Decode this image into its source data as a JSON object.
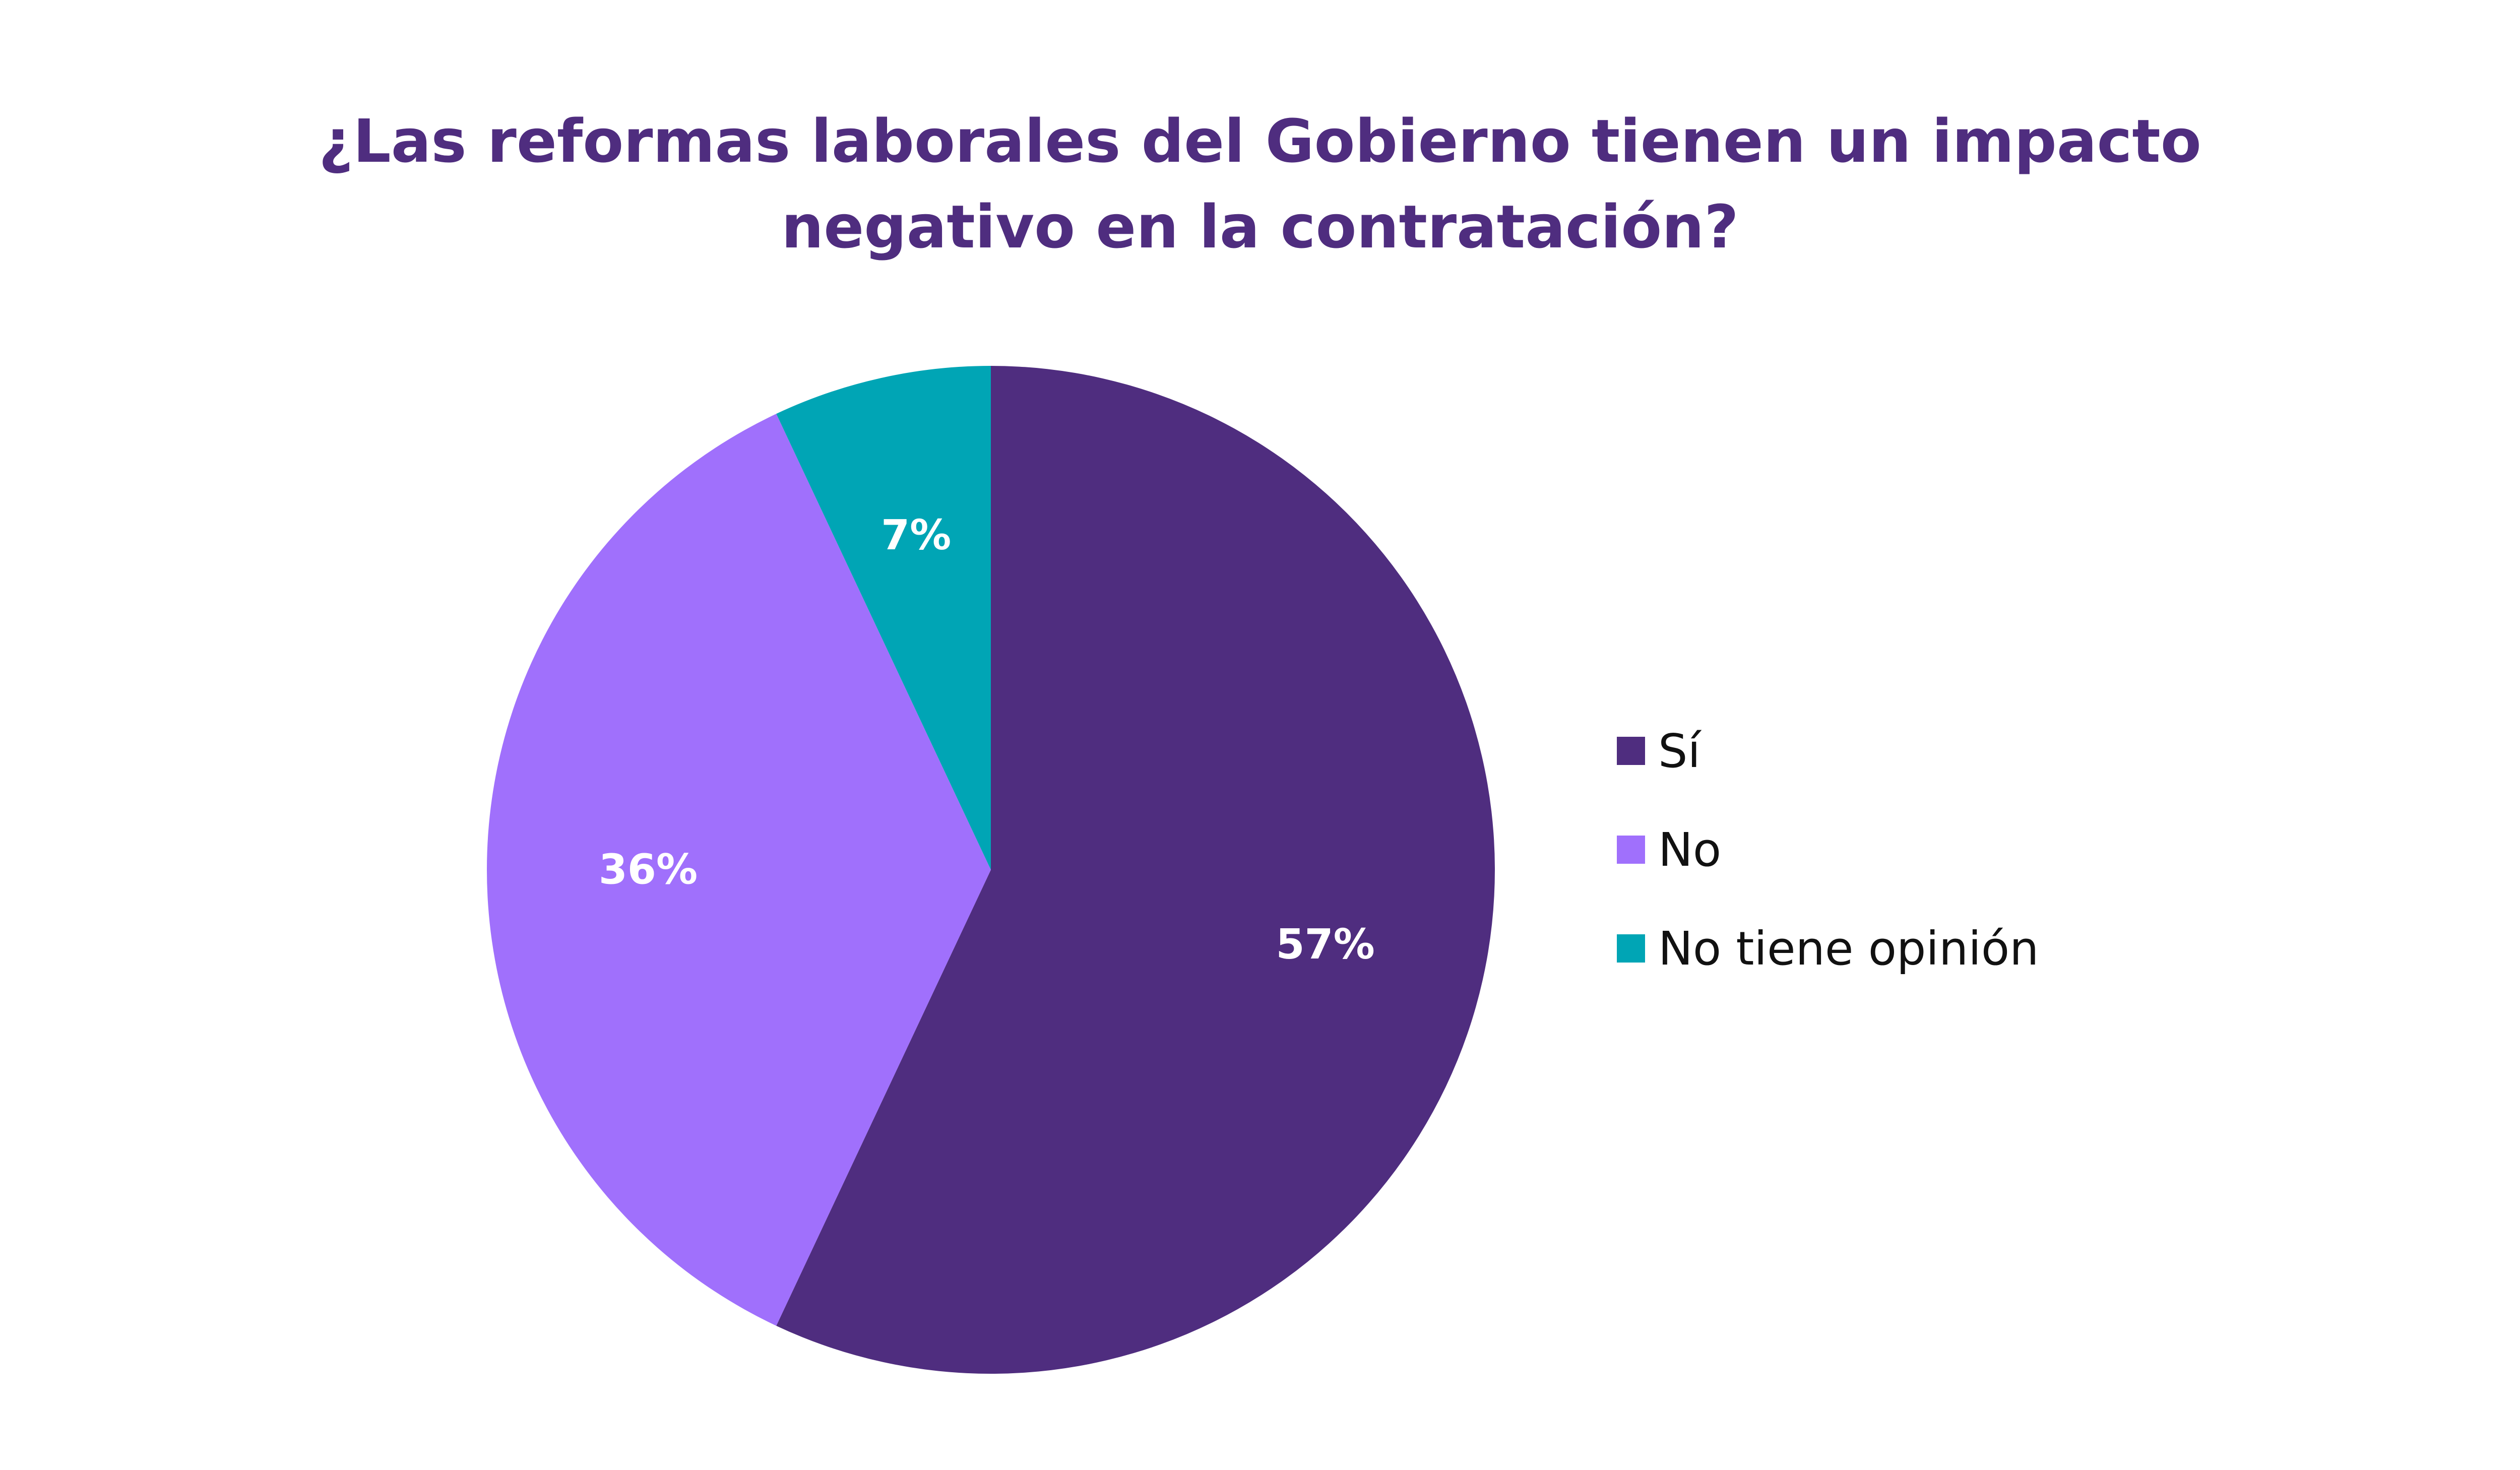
{
  "chart_data": {
    "type": "pie",
    "title_lines": [
      "¿Las reformas laborales del Gobierno tienen un impacto",
      "negativo en la contratación?"
    ],
    "categories": [
      "Sí",
      "No",
      "No tiene opinión"
    ],
    "values": [
      57,
      36,
      7
    ],
    "value_labels": [
      "57%",
      "36%",
      "7%"
    ],
    "colors": [
      "#4f2d7f",
      "#a070fc",
      "#00a5b5"
    ],
    "legend_position": "right",
    "start": "top",
    "direction": "clockwise"
  }
}
